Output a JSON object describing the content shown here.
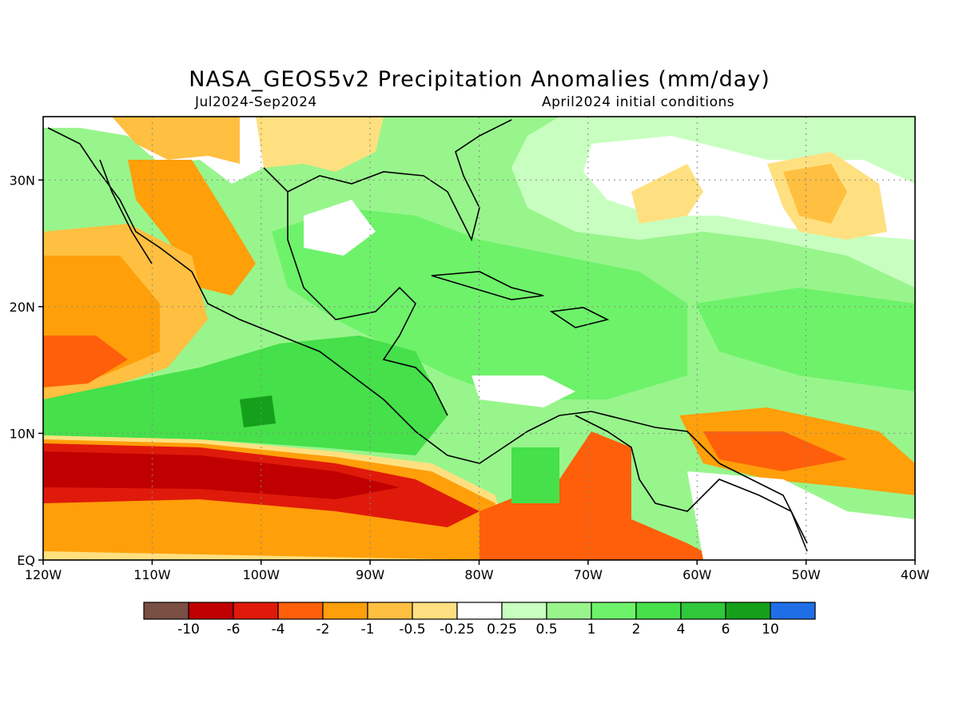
{
  "title": "NASA_GEOS5v2 Precipitation Anomalies (mm/day)",
  "subtitle_left": "Jul2024-Sep2024",
  "subtitle_right": "April2024 initial conditions",
  "map": {
    "lon_range": [
      -120,
      -40
    ],
    "lat_range": [
      0,
      35
    ],
    "x_ticks": [
      "120W",
      "110W",
      "100W",
      "90W",
      "80W",
      "70W",
      "60W",
      "50W",
      "40W"
    ],
    "y_ticks": [
      "EQ",
      "10N",
      "20N",
      "30N"
    ],
    "grid": "dotted"
  },
  "colorbar": {
    "colors": [
      "#7a4f44",
      "#c00000",
      "#e01a0a",
      "#ff5f0a",
      "#ff9f0a",
      "#ffbf40",
      "#ffe080",
      "#ffffff",
      "#c8ffc0",
      "#98f58c",
      "#6ef26a",
      "#45e04a",
      "#2fc83a",
      "#14a01a",
      "#1e6fe6"
    ],
    "labels": [
      "-10",
      "-6",
      "-4",
      "-2",
      "-1",
      "-0.5",
      "-0.25",
      "0.25",
      "0.5",
      "1",
      "2",
      "4",
      "6",
      "10"
    ]
  }
}
